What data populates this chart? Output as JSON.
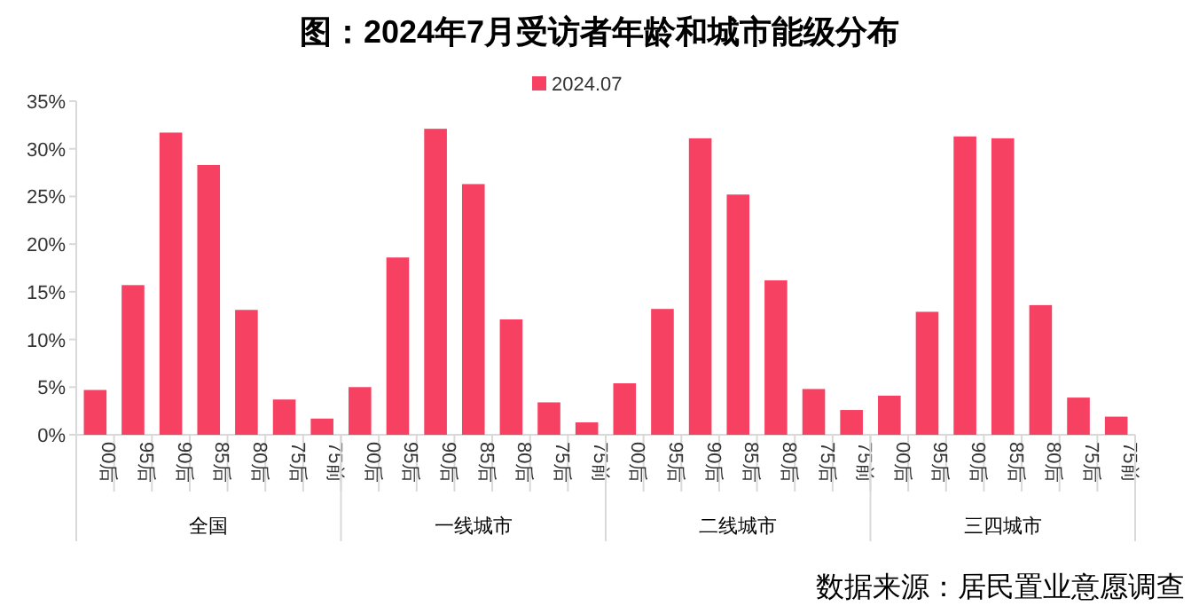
{
  "chart_data": {
    "type": "bar",
    "title": "图：2024年7月受访者年龄和城市能级分布",
    "categories": [
      "00后",
      "95后",
      "90后",
      "85后",
      "80后",
      "75后",
      "75前",
      "00后",
      "95后",
      "90后",
      "85后",
      "80后",
      "75后",
      "75前",
      "00后",
      "95后",
      "90后",
      "85后",
      "80后",
      "75后",
      "75前",
      "00后",
      "95后",
      "90后",
      "85后",
      "80后",
      "75后",
      "75前"
    ],
    "series": [
      {
        "name": "2024.07",
        "color": "#f74162",
        "values": [
          4.7,
          15.7,
          31.7,
          28.3,
          13.1,
          3.7,
          1.7,
          5.0,
          18.6,
          32.1,
          26.3,
          12.1,
          3.4,
          1.3,
          5.4,
          13.2,
          31.1,
          25.2,
          16.2,
          4.8,
          2.6,
          4.1,
          12.9,
          31.3,
          31.1,
          13.6,
          3.9,
          1.9
        ]
      }
    ],
    "ylim": [
      0,
      35
    ],
    "yticks": [
      {
        "value": 0,
        "label": "0%"
      },
      {
        "value": 5,
        "label": "5%"
      },
      {
        "value": 10,
        "label": "10%"
      },
      {
        "value": 15,
        "label": "15%"
      },
      {
        "value": 20,
        "label": "20%"
      },
      {
        "value": 25,
        "label": "25%"
      },
      {
        "value": 30,
        "label": "30%"
      },
      {
        "value": 35,
        "label": "35%"
      }
    ],
    "annotations": [
      "全国",
      "一线城市",
      "二线城市",
      "三四城市",
      "数据来源：居民置业意愿调查"
    ],
    "legend": "top",
    "grid": false
  }
}
